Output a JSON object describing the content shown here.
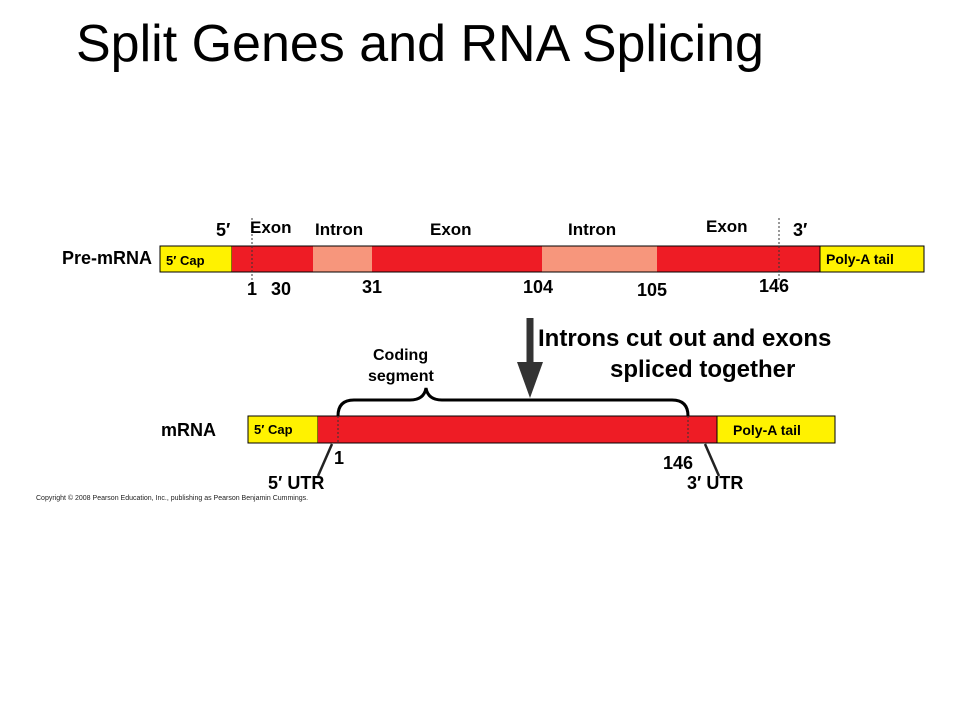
{
  "title": "Split Genes and RNA Splicing",
  "colors": {
    "exon": "#ee1c25",
    "intron": "#f7967c",
    "cap_tail": "#fff200",
    "outline": "#000000"
  },
  "pre_mrna": {
    "label": "Pre-mRNA",
    "end5": "5′",
    "end3": "3′",
    "cap": "5′ Cap",
    "tail": "Poly-A tail",
    "segments": [
      {
        "label": "Exon",
        "kind": "exon"
      },
      {
        "label": "Intron",
        "kind": "intron"
      },
      {
        "label": "Exon",
        "kind": "exon"
      },
      {
        "label": "Intron",
        "kind": "intron"
      },
      {
        "label": "Exon",
        "kind": "exon"
      }
    ],
    "positions": [
      "1",
      "30",
      "31",
      "104",
      "105",
      "146"
    ]
  },
  "arrow_caption": {
    "line1": "Introns cut out and exons",
    "line2": "spliced together"
  },
  "mrna": {
    "label": "mRNA",
    "cap": "5′ Cap",
    "tail": "Poly-A tail",
    "coding_line1": "Coding",
    "coding_line2": "segment",
    "start": "1",
    "end": "146",
    "utr5": "5′ UTR",
    "utr3": "3′ UTR"
  },
  "copyright": "Copyright © 2008 Pearson Education, Inc., publishing as Pearson Benjamin Cummings."
}
